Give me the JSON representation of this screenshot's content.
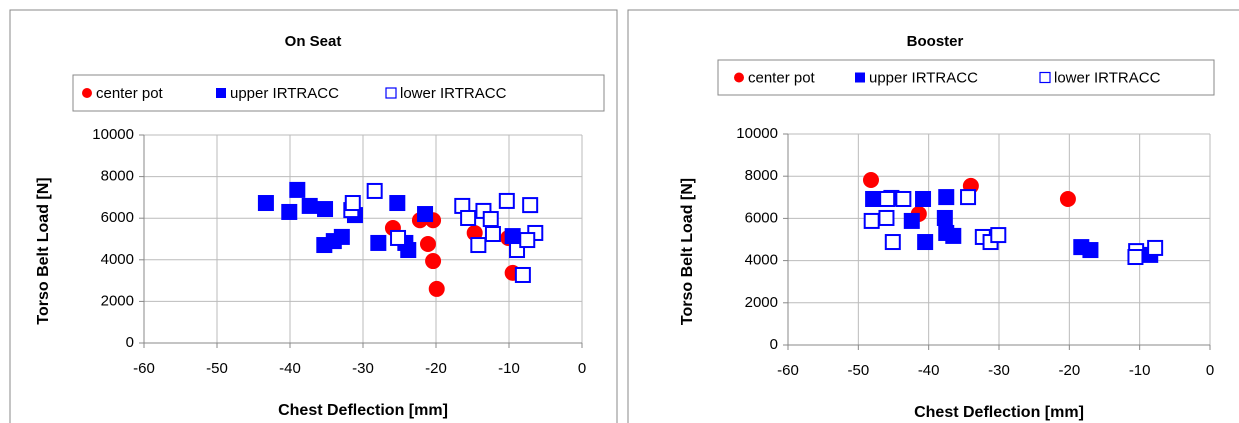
{
  "chart_data": [
    {
      "type": "scatter",
      "title": "On Seat",
      "xlabel": "Chest Deflection [mm]",
      "ylabel": "Torso Belt Load [N]",
      "xlim": [
        -60,
        0
      ],
      "ylim": [
        0,
        10000
      ],
      "xticks": [
        -60,
        -50,
        -40,
        -30,
        -20,
        -10,
        0
      ],
      "yticks": [
        0,
        2000,
        4000,
        6000,
        8000,
        10000
      ],
      "grid": true,
      "series": [
        {
          "name": "center pot",
          "color": "#ff0000",
          "marker": "circle",
          "x": [
            -25.9,
            -22.2,
            -20.4,
            -21.1,
            -20.4,
            -19.9,
            -14.7,
            -10.1,
            -9.5
          ],
          "y": [
            5530,
            5900,
            5900,
            4760,
            3940,
            2600,
            5290,
            5050,
            3370
          ]
        },
        {
          "name": "upper IRTRACC",
          "color": "#0000ff",
          "marker": "square",
          "x": [
            -43.3,
            -40.1,
            -39.0,
            -37.3,
            -35.2,
            -35.3,
            -34.0,
            -32.9,
            -31.1,
            -27.9,
            -25.3,
            -24.2,
            -23.8,
            -21.5,
            -9.5
          ],
          "y": [
            6730,
            6300,
            7360,
            6590,
            6440,
            4710,
            4900,
            5100,
            6150,
            4810,
            6730,
            4810,
            4470,
            6200,
            5140
          ]
        },
        {
          "name": "lower IRTRACC",
          "color": "#0000ff",
          "marker": "open-square",
          "x": [
            -31.6,
            -31.4,
            -28.4,
            -25.2,
            -16.4,
            -15.6,
            -14.2,
            -13.5,
            -12.5,
            -12.2,
            -10.3,
            -8.9,
            -8.1,
            -7.1,
            -6.4,
            -7.5
          ],
          "y": [
            6390,
            6730,
            7310,
            5050,
            6590,
            6010,
            4710,
            6350,
            5960,
            5240,
            6830,
            4470,
            3270,
            6630,
            5290,
            4950
          ]
        }
      ]
    },
    {
      "type": "scatter",
      "title": "Booster",
      "xlabel": "Chest Deflection [mm]",
      "ylabel": "Torso Belt Load [N]",
      "xlim": [
        -60,
        0
      ],
      "ylim": [
        0,
        10000
      ],
      "xticks": [
        -60,
        -50,
        -40,
        -30,
        -20,
        -10,
        0
      ],
      "yticks": [
        0,
        2000,
        4000,
        6000,
        8000,
        10000
      ],
      "grid": true,
      "series": [
        {
          "name": "center pot",
          "color": "#ff0000",
          "marker": "circle",
          "x": [
            -48.2,
            -41.4,
            -34.0,
            -20.2
          ],
          "y": [
            7820,
            6210,
            7540,
            6920
          ]
        },
        {
          "name": "upper IRTRACC",
          "color": "#0000ff",
          "marker": "square",
          "x": [
            -47.9,
            -45.3,
            -40.8,
            -37.5,
            -42.4,
            -40.5,
            -37.7,
            -37.5,
            -36.5,
            -18.3,
            -17.0,
            -8.5
          ],
          "y": [
            6920,
            6970,
            6920,
            7010,
            5880,
            4880,
            6020,
            5310,
            5170,
            4640,
            4500,
            4270
          ]
        },
        {
          "name": "lower IRTRACC",
          "color": "#0000ff",
          "marker": "open-square",
          "x": [
            -48.1,
            -46.0,
            -45.9,
            -43.6,
            -45.1,
            -34.4,
            -32.3,
            -31.2,
            -30.1,
            -10.5,
            -10.6,
            -7.8
          ],
          "y": [
            5880,
            6020,
            6920,
            6920,
            4880,
            7010,
            5120,
            4880,
            5210,
            4450,
            4170,
            4600
          ]
        }
      ]
    }
  ]
}
